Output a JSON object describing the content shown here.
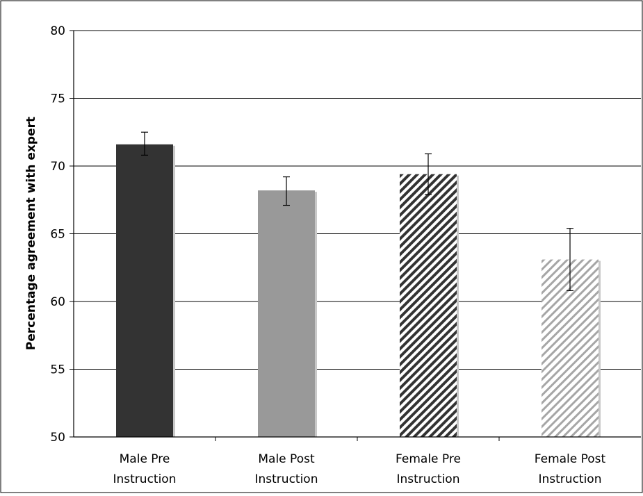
{
  "chart_data": {
    "type": "bar",
    "title": "",
    "xlabel": "",
    "ylabel": "Percentage agreement with expert",
    "ylim": [
      50,
      80
    ],
    "yticks": [
      50,
      55,
      60,
      65,
      70,
      75,
      80
    ],
    "grid": true,
    "legend": "none",
    "categories": [
      [
        "Male Pre",
        "Instruction"
      ],
      [
        "Male Post",
        "Instruction"
      ],
      [
        "Female Pre",
        "Instruction"
      ],
      [
        "Female Post",
        "Instruction"
      ]
    ],
    "values": [
      71.6,
      68.2,
      69.4,
      63.1
    ],
    "error_low": [
      70.8,
      67.1,
      67.9,
      60.8
    ],
    "error_high": [
      72.5,
      69.2,
      70.9,
      65.4
    ],
    "styles": [
      {
        "fill": "solid",
        "color": "#333333"
      },
      {
        "fill": "solid",
        "color": "#999999"
      },
      {
        "fill": "hatch",
        "color": "#333333"
      },
      {
        "fill": "hatch",
        "color": "#a6a6a6"
      }
    ]
  }
}
